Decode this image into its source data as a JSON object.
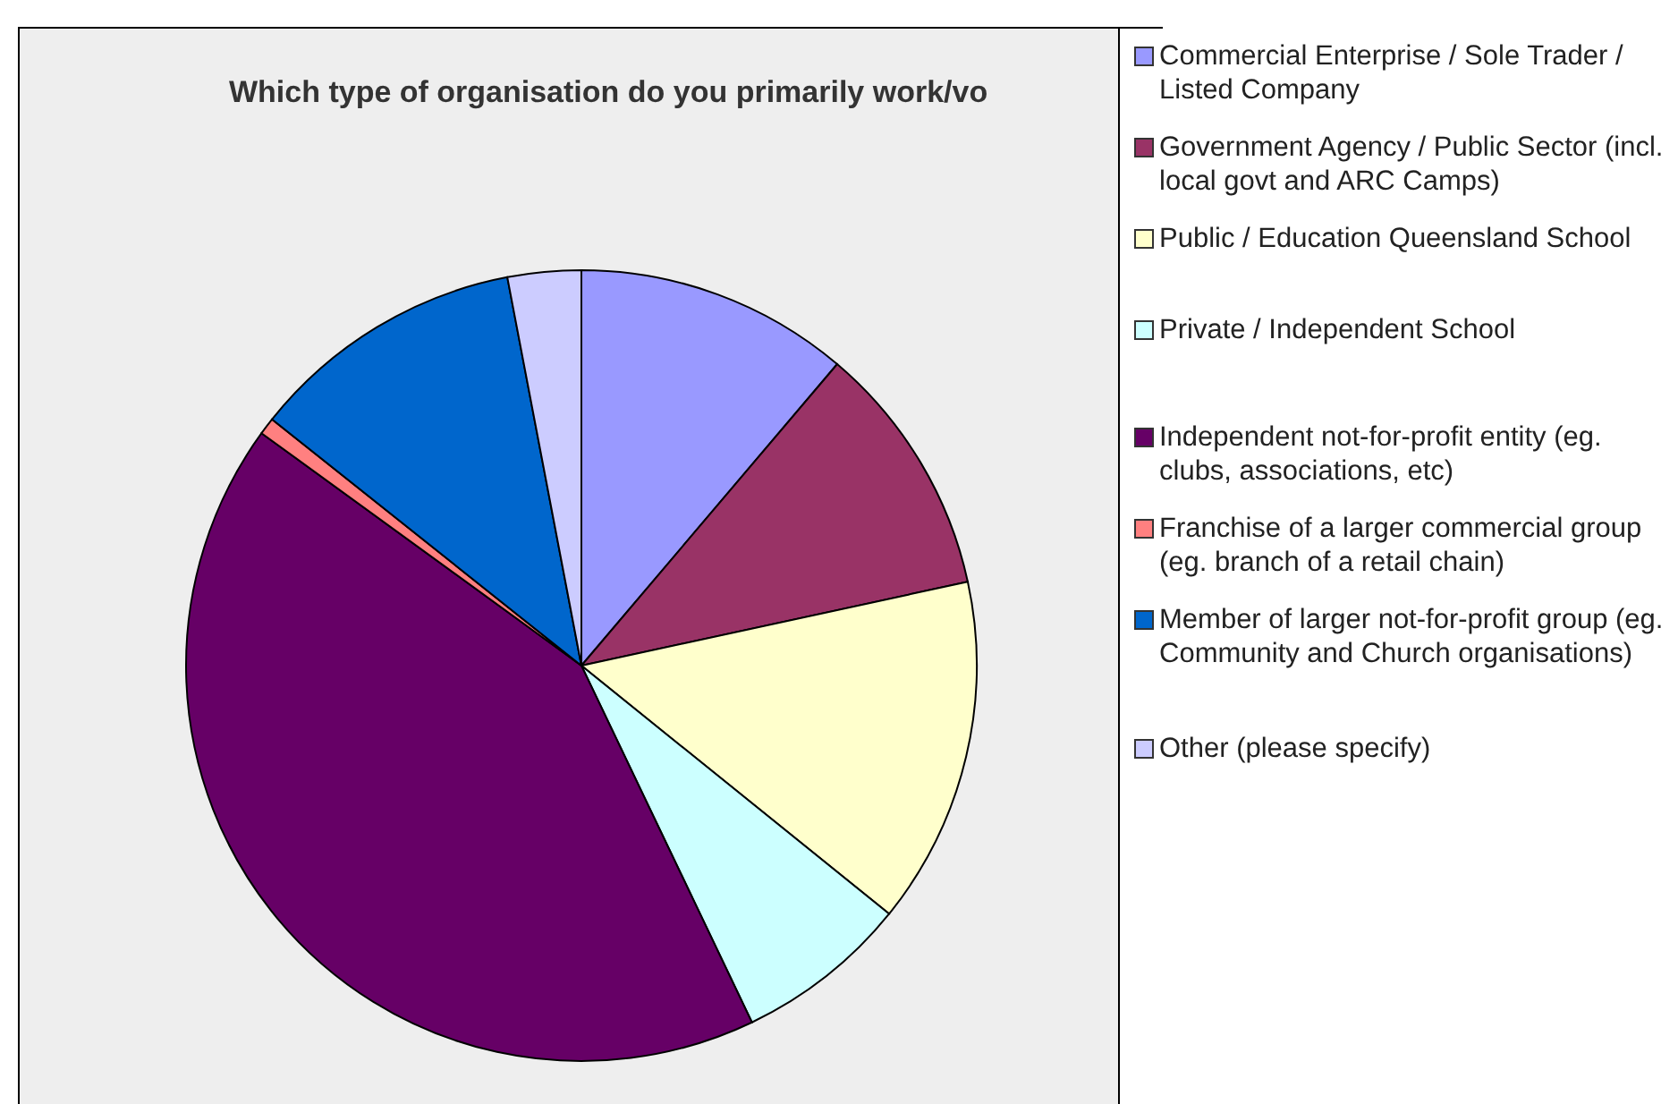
{
  "chart_data": {
    "type": "pie",
    "title": "Which type of organisation do you primarily work/vo",
    "categories": [
      "Commercial Enterprise / Sole Trader / Listed Company",
      "Government Agency / Public Sector (incl. local govt and ARC Camps)",
      "Public / Education Queensland School",
      "Private / Independent School",
      "Independent not-for-profit entity (eg. clubs, associations, etc)",
      "Franchise of a larger commercial group (eg. branch of a retail chain)",
      "Member of larger not-for-profit group (eg. Community and Church organisations)",
      "Other (please specify)"
    ],
    "values": [
      11.2,
      10.4,
      14.2,
      7.1,
      42.1,
      0.7,
      11.3,
      3.0
    ],
    "colors": [
      "#9999ff",
      "#993366",
      "#ffffcc",
      "#ccffff",
      "#660066",
      "#ff8080",
      "#0066cc",
      "#ccccff"
    ],
    "legend": "right"
  }
}
